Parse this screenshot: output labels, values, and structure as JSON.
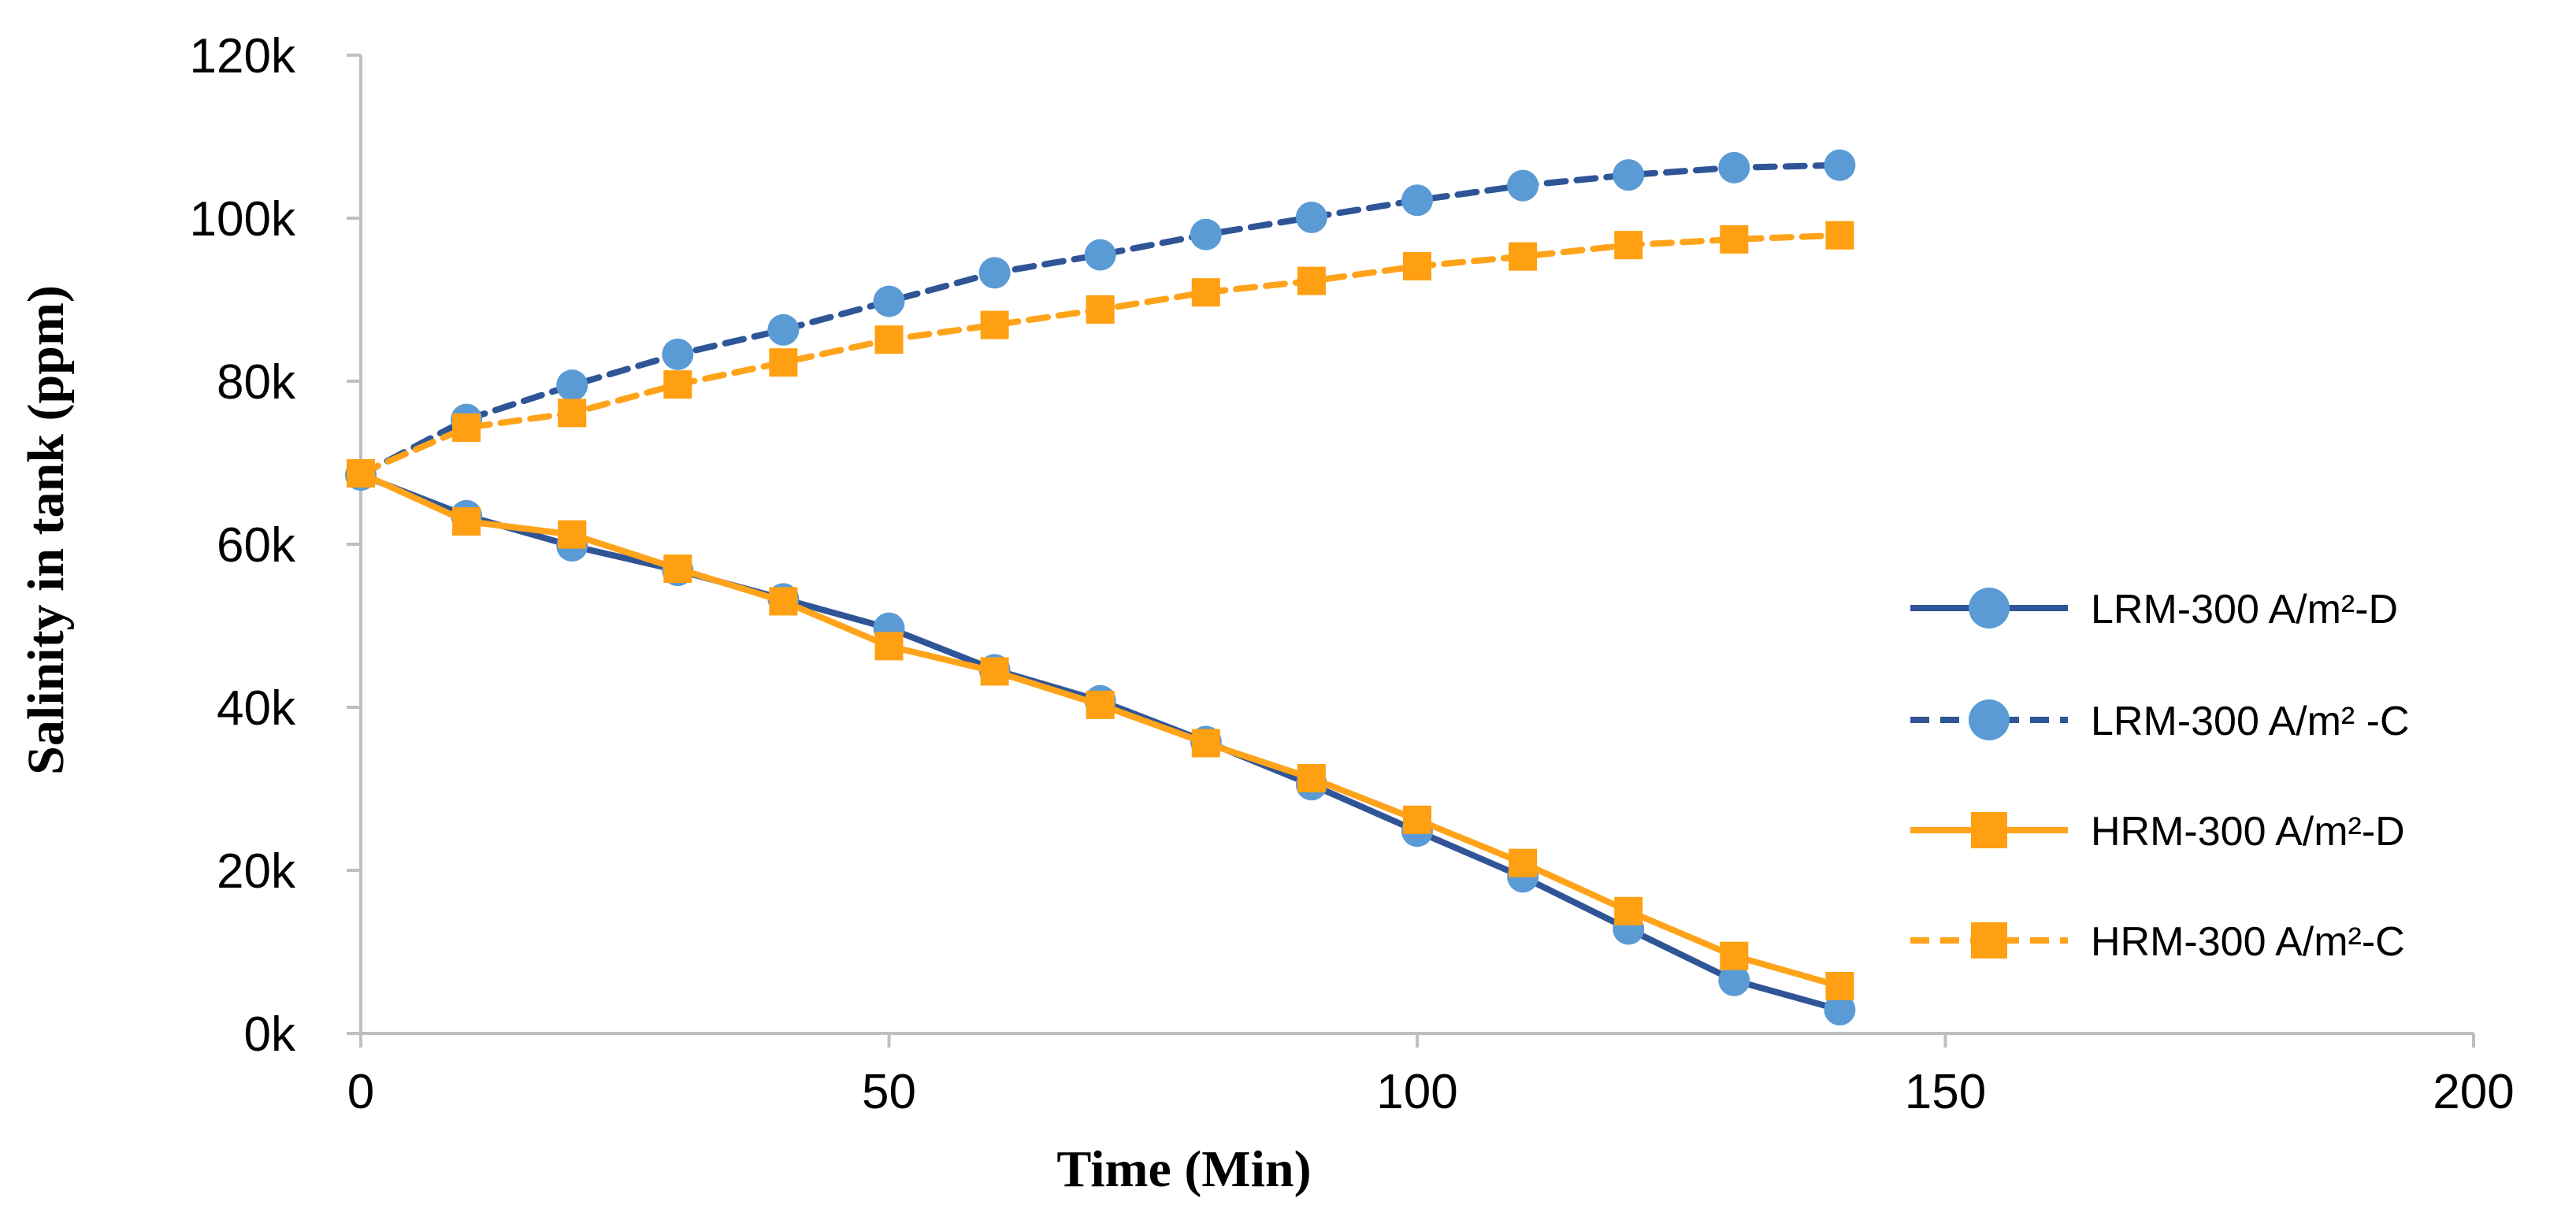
{
  "chart_data": {
    "type": "line",
    "title": "",
    "xlabel": "Time (Min)",
    "ylabel": "Salinity in tank (ppm)",
    "xlim": [
      0,
      200
    ],
    "ylim": [
      0,
      120000
    ],
    "x_ticks": [
      0,
      50,
      100,
      150,
      200
    ],
    "x_tick_labels": [
      "0",
      "50",
      "100",
      "150",
      "200"
    ],
    "y_ticks": [
      0,
      20000,
      40000,
      60000,
      80000,
      100000,
      120000
    ],
    "y_tick_labels": [
      "0k",
      "20k",
      "40k",
      "60k",
      "80k",
      "100k",
      "120k"
    ],
    "grid": false,
    "legend_position": "right",
    "x": [
      0,
      10,
      20,
      30,
      40,
      50,
      60,
      70,
      80,
      90,
      100,
      110,
      120,
      130,
      140
    ],
    "series": [
      {
        "name": "LRM-300 A/m²-D",
        "color": "#2f5597",
        "marker_color": "#5b9bd5",
        "marker": "circle",
        "dash": "solid",
        "values": [
          68500,
          63500,
          59800,
          56800,
          53300,
          49700,
          44600,
          40800,
          35800,
          30500,
          24800,
          19200,
          12800,
          6500,
          2900
        ]
      },
      {
        "name": "LRM-300 A/m² -C",
        "color": "#2f5597",
        "marker_color": "#5b9bd5",
        "marker": "circle",
        "dash": "dashed",
        "values": [
          68500,
          75300,
          79500,
          83300,
          86300,
          89800,
          93300,
          95500,
          98000,
          100100,
          102200,
          104000,
          105300,
          106200,
          106500
        ]
      },
      {
        "name": "HRM-300 A/m²-D",
        "color": "#ffa31a",
        "marker_color": "#ff9f12",
        "marker": "square",
        "dash": "solid",
        "values": [
          68700,
          62800,
          61200,
          57000,
          53000,
          47500,
          44400,
          40300,
          35600,
          31300,
          26200,
          20900,
          15000,
          9500,
          5800
        ]
      },
      {
        "name": "HRM-300 A/m²-C",
        "color": "#ffa31a",
        "marker_color": "#ff9f12",
        "marker": "square",
        "dash": "dashed",
        "values": [
          68700,
          74300,
          76100,
          79600,
          82300,
          85100,
          86900,
          88800,
          90900,
          92300,
          94100,
          95300,
          96700,
          97400,
          97900
        ]
      }
    ]
  }
}
